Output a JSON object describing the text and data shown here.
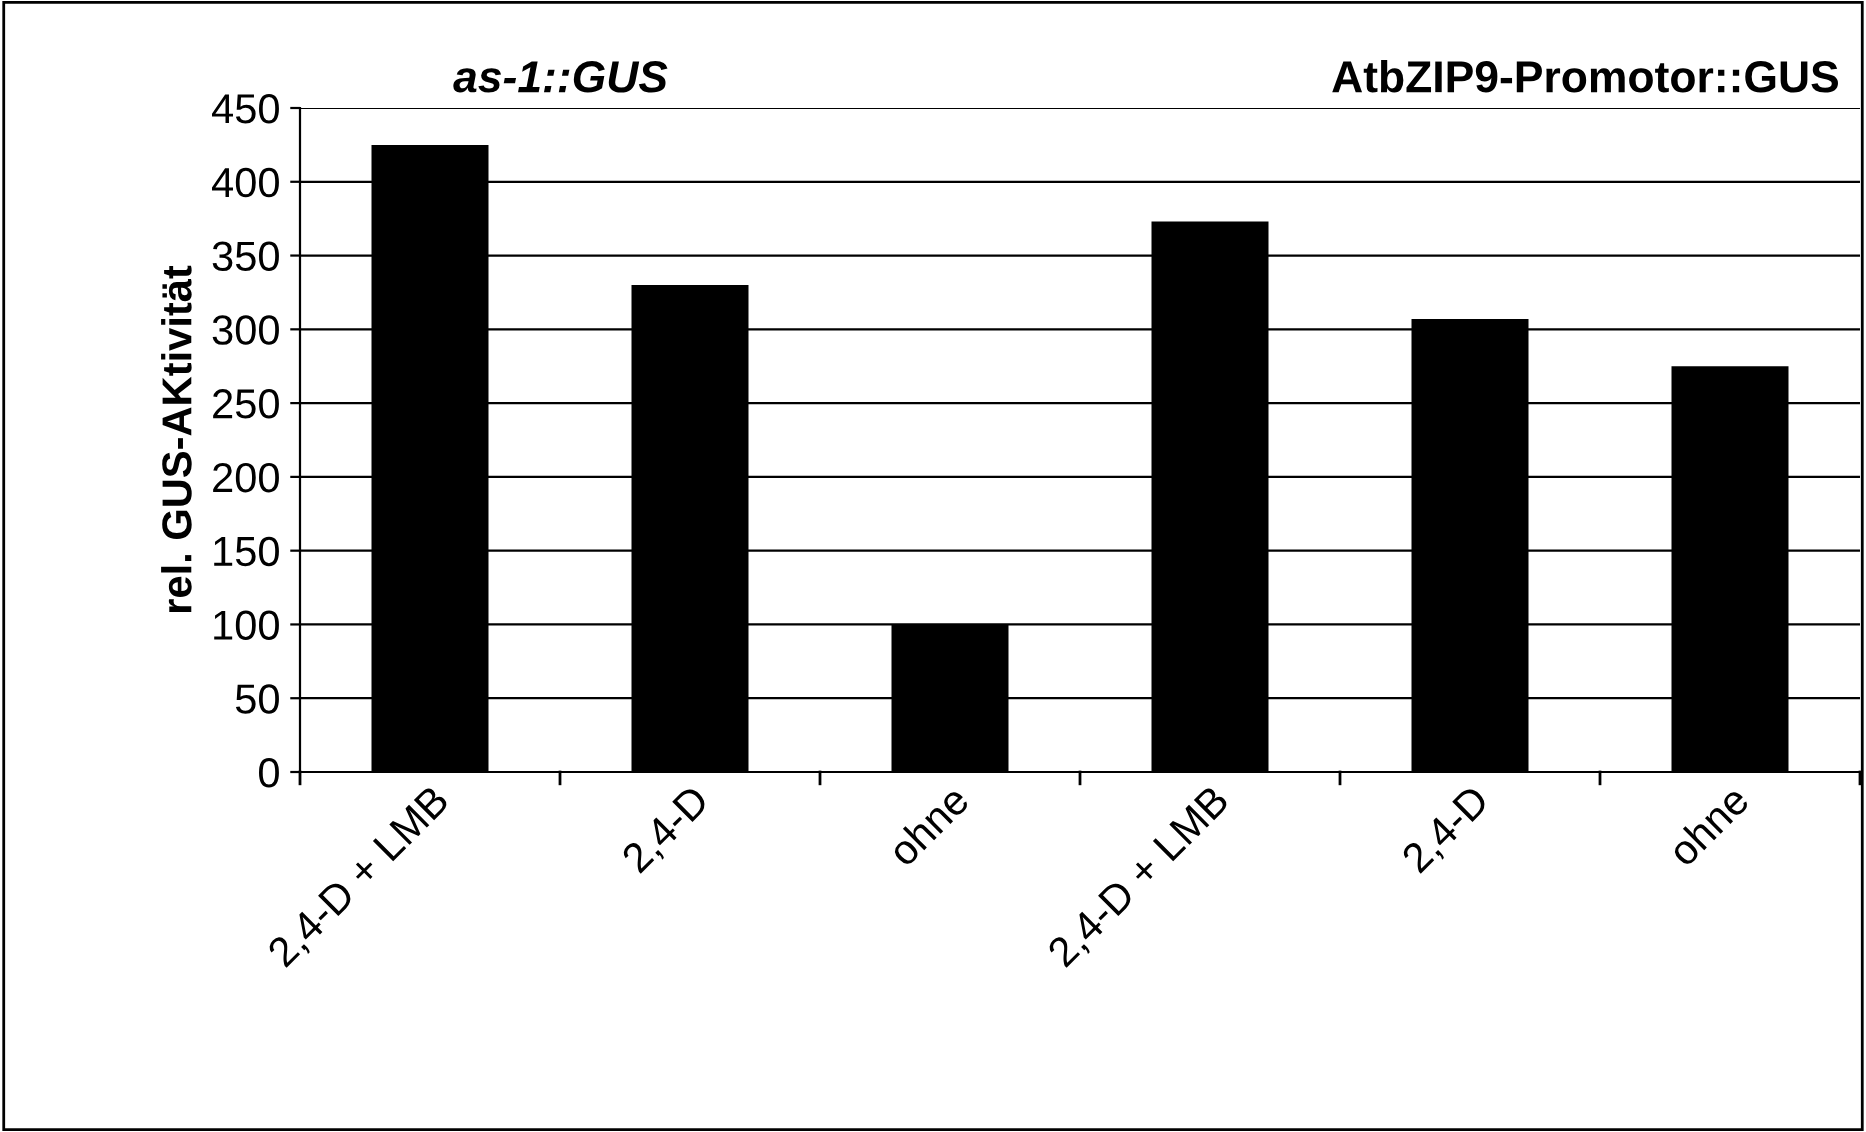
{
  "chart_data": {
    "type": "bar",
    "ylabel": "rel. GUS-AKtivität",
    "categories": [
      "2,4-D + LMB",
      "2,4-D",
      "ohne",
      "2,4-D + LMB",
      "2,4-D",
      "ohne"
    ],
    "values": [
      425,
      330,
      100,
      373,
      307,
      275
    ],
    "color": "#000000",
    "ylim": [
      0,
      450
    ],
    "yticks": [
      0,
      50,
      100,
      150,
      200,
      250,
      300,
      350,
      400,
      450
    ],
    "grid": "y",
    "annotations": [
      "as-1::GUS",
      "AtbZIP9-Promotor::GUS"
    ]
  }
}
